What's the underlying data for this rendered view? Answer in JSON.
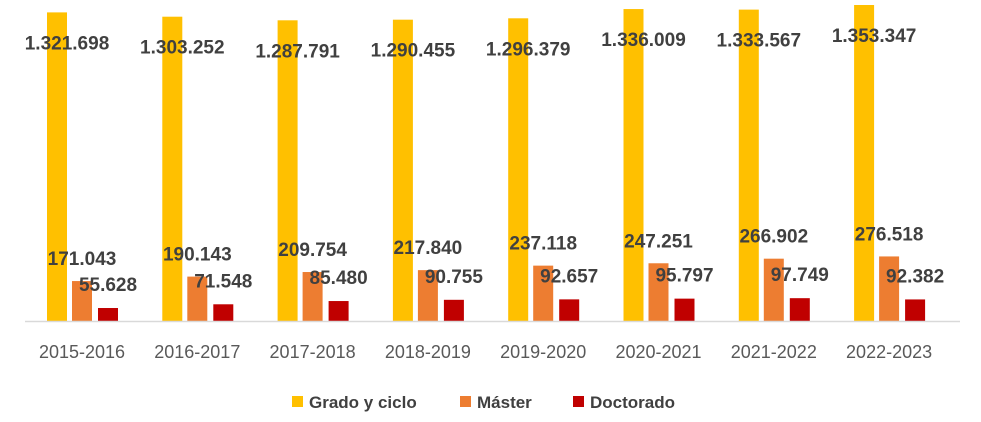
{
  "chart_data": {
    "type": "bar",
    "categories": [
      "2015-2016",
      "2016-2017",
      "2017-2018",
      "2018-2019",
      "2019-2020",
      "2020-2021",
      "2021-2022",
      "2022-2023"
    ],
    "series": [
      {
        "name": "Grado y ciclo",
        "color": "#FFC000",
        "values": [
          1321698,
          1303252,
          1287791,
          1290455,
          1296379,
          1336009,
          1333567,
          1353347
        ],
        "labels": [
          "1.321.698",
          "1.303.252",
          "1.287.791",
          "1.290.455",
          "1.296.379",
          "1.336.009",
          "1.333.567",
          "1.353.347"
        ]
      },
      {
        "name": "Máster",
        "color": "#ED7D31",
        "values": [
          171043,
          190143,
          209754,
          217840,
          237118,
          247251,
          266902,
          276518
        ],
        "labels": [
          "171.043",
          "190.143",
          "209.754",
          "217.840",
          "237.118",
          "247.251",
          "266.902",
          "276.518"
        ]
      },
      {
        "name": "Doctorado",
        "color": "#C00000",
        "values": [
          55628,
          71548,
          85480,
          90755,
          92657,
          95797,
          97749,
          92382
        ],
        "labels": [
          "55.628",
          "71.548",
          "85.480",
          "90.755",
          "92.657",
          "95.797",
          "97.749",
          "92.382"
        ]
      }
    ],
    "title": "",
    "xlabel": "",
    "ylabel": "",
    "ylim": [
      0,
      1353347
    ],
    "grid": false,
    "legend": "bottom"
  }
}
